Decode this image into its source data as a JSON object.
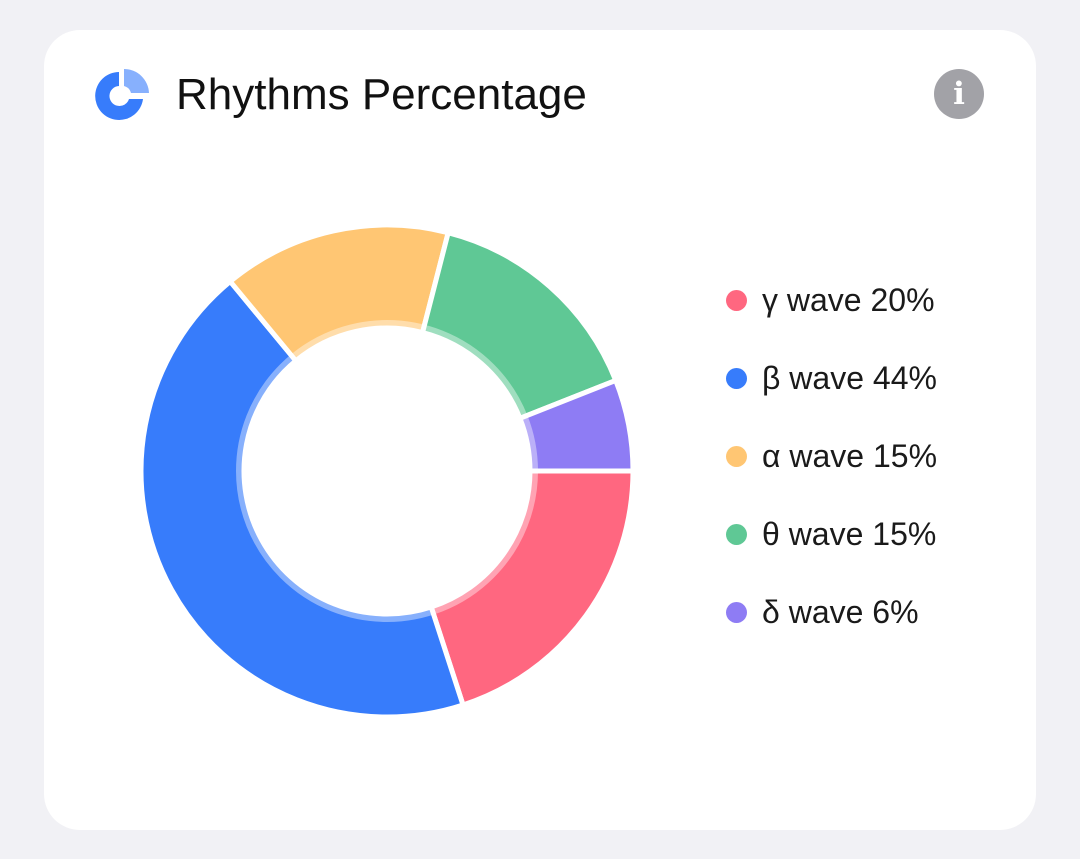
{
  "header": {
    "title": "Rhythms Percentage",
    "icon": "pie-chart-icon",
    "info_icon": "info-icon",
    "info_symbol": "i"
  },
  "colors": {
    "accent": "#377cfb",
    "info": "#a2a2a7"
  },
  "chart_data": {
    "type": "pie",
    "variant": "donut",
    "title": "",
    "slices": [
      {
        "label": "γ wave 20%",
        "value": 20,
        "color": "#ff6780"
      },
      {
        "label": "β wave 44%",
        "value": 44,
        "color": "#377cfb"
      },
      {
        "label": "α wave 15%",
        "value": 15,
        "color": "#ffc673"
      },
      {
        "label": "θ wave 15%",
        "value": 15,
        "color": "#5fc895"
      },
      {
        "label": "δ wave 6%",
        "value": 6,
        "color": "#8e7cf4"
      }
    ],
    "legend_position": "right"
  }
}
